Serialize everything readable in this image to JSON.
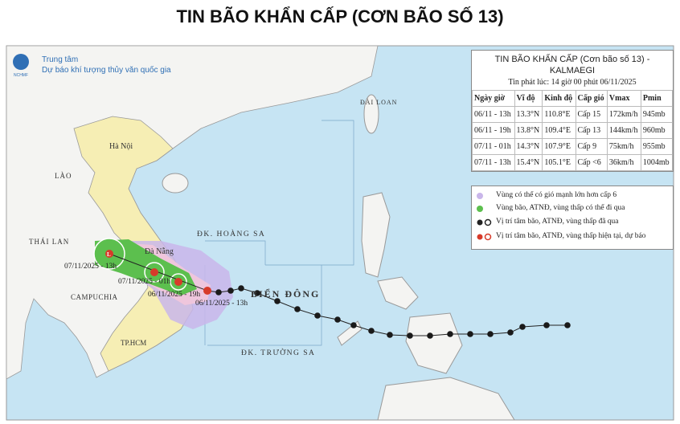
{
  "title": "TIN BÃO KHẨN CẤP (CƠN BÃO SỐ 13)",
  "logo": {
    "abbr": "NCHMF",
    "line1": "Trung tâm",
    "line2": "Dự báo khí tượng thủy văn quốc gia"
  },
  "info": {
    "title_line1": "TIN BÃO KHẨN CẤP (Cơn bão số 13) -",
    "title_line2": "KALMAEGI",
    "issued": "Tin phát lúc: 14 giờ 00 phút 06/11/2025",
    "table": {
      "header": [
        "Ngày giờ",
        "Vĩ độ",
        "Kinh độ",
        "Cấp gió",
        "Vmax",
        "Pmin"
      ],
      "rows": [
        [
          "06/11 - 13h",
          "13.3°N",
          "110.8°E",
          "Cấp 15",
          "172km/h",
          "945mb"
        ],
        [
          "06/11 - 19h",
          "13.8°N",
          "109.4°E",
          "Cấp 13",
          "144km/h",
          "960mb"
        ],
        [
          "07/11 - 01h",
          "14.3°N",
          "107.9°E",
          "Cấp 9",
          "75km/h",
          "955mb"
        ],
        [
          "07/11 - 13h",
          "15.4°N",
          "105.1°E",
          "Cấp <6",
          "36km/h",
          "1004mb"
        ]
      ]
    }
  },
  "legend": [
    "Vùng có thể có gió mạnh lớn hơn cấp 6",
    "Vùng bão, ATNĐ, vùng thấp có thể đi qua",
    "Vị trí tâm bão, ATNĐ, vùng thấp đã qua",
    "Vị trí tâm bão, ATNĐ, vùng thấp hiện tại, dự báo"
  ],
  "map_labels": {
    "hanoi": "Hà Nội",
    "laos": "LÀO",
    "thailand": "THÁI LAN",
    "cambodia": "CAMPUCHIA",
    "danang": "Đà Nẵng",
    "hcm": "TP.HCM",
    "hoangsa": "ĐK. HOÀNG SA",
    "biendong": "BIỂN ĐÔNG",
    "truongsa": "ĐK. TRƯỜNG SA",
    "taiwan": "ĐÀI LOAN"
  },
  "forecast_labels": [
    "07/11/2025 - 13h",
    "07/11/2025 - 01h",
    "06/11/2025 - 19h",
    "06/11/2025 - 13h"
  ]
}
